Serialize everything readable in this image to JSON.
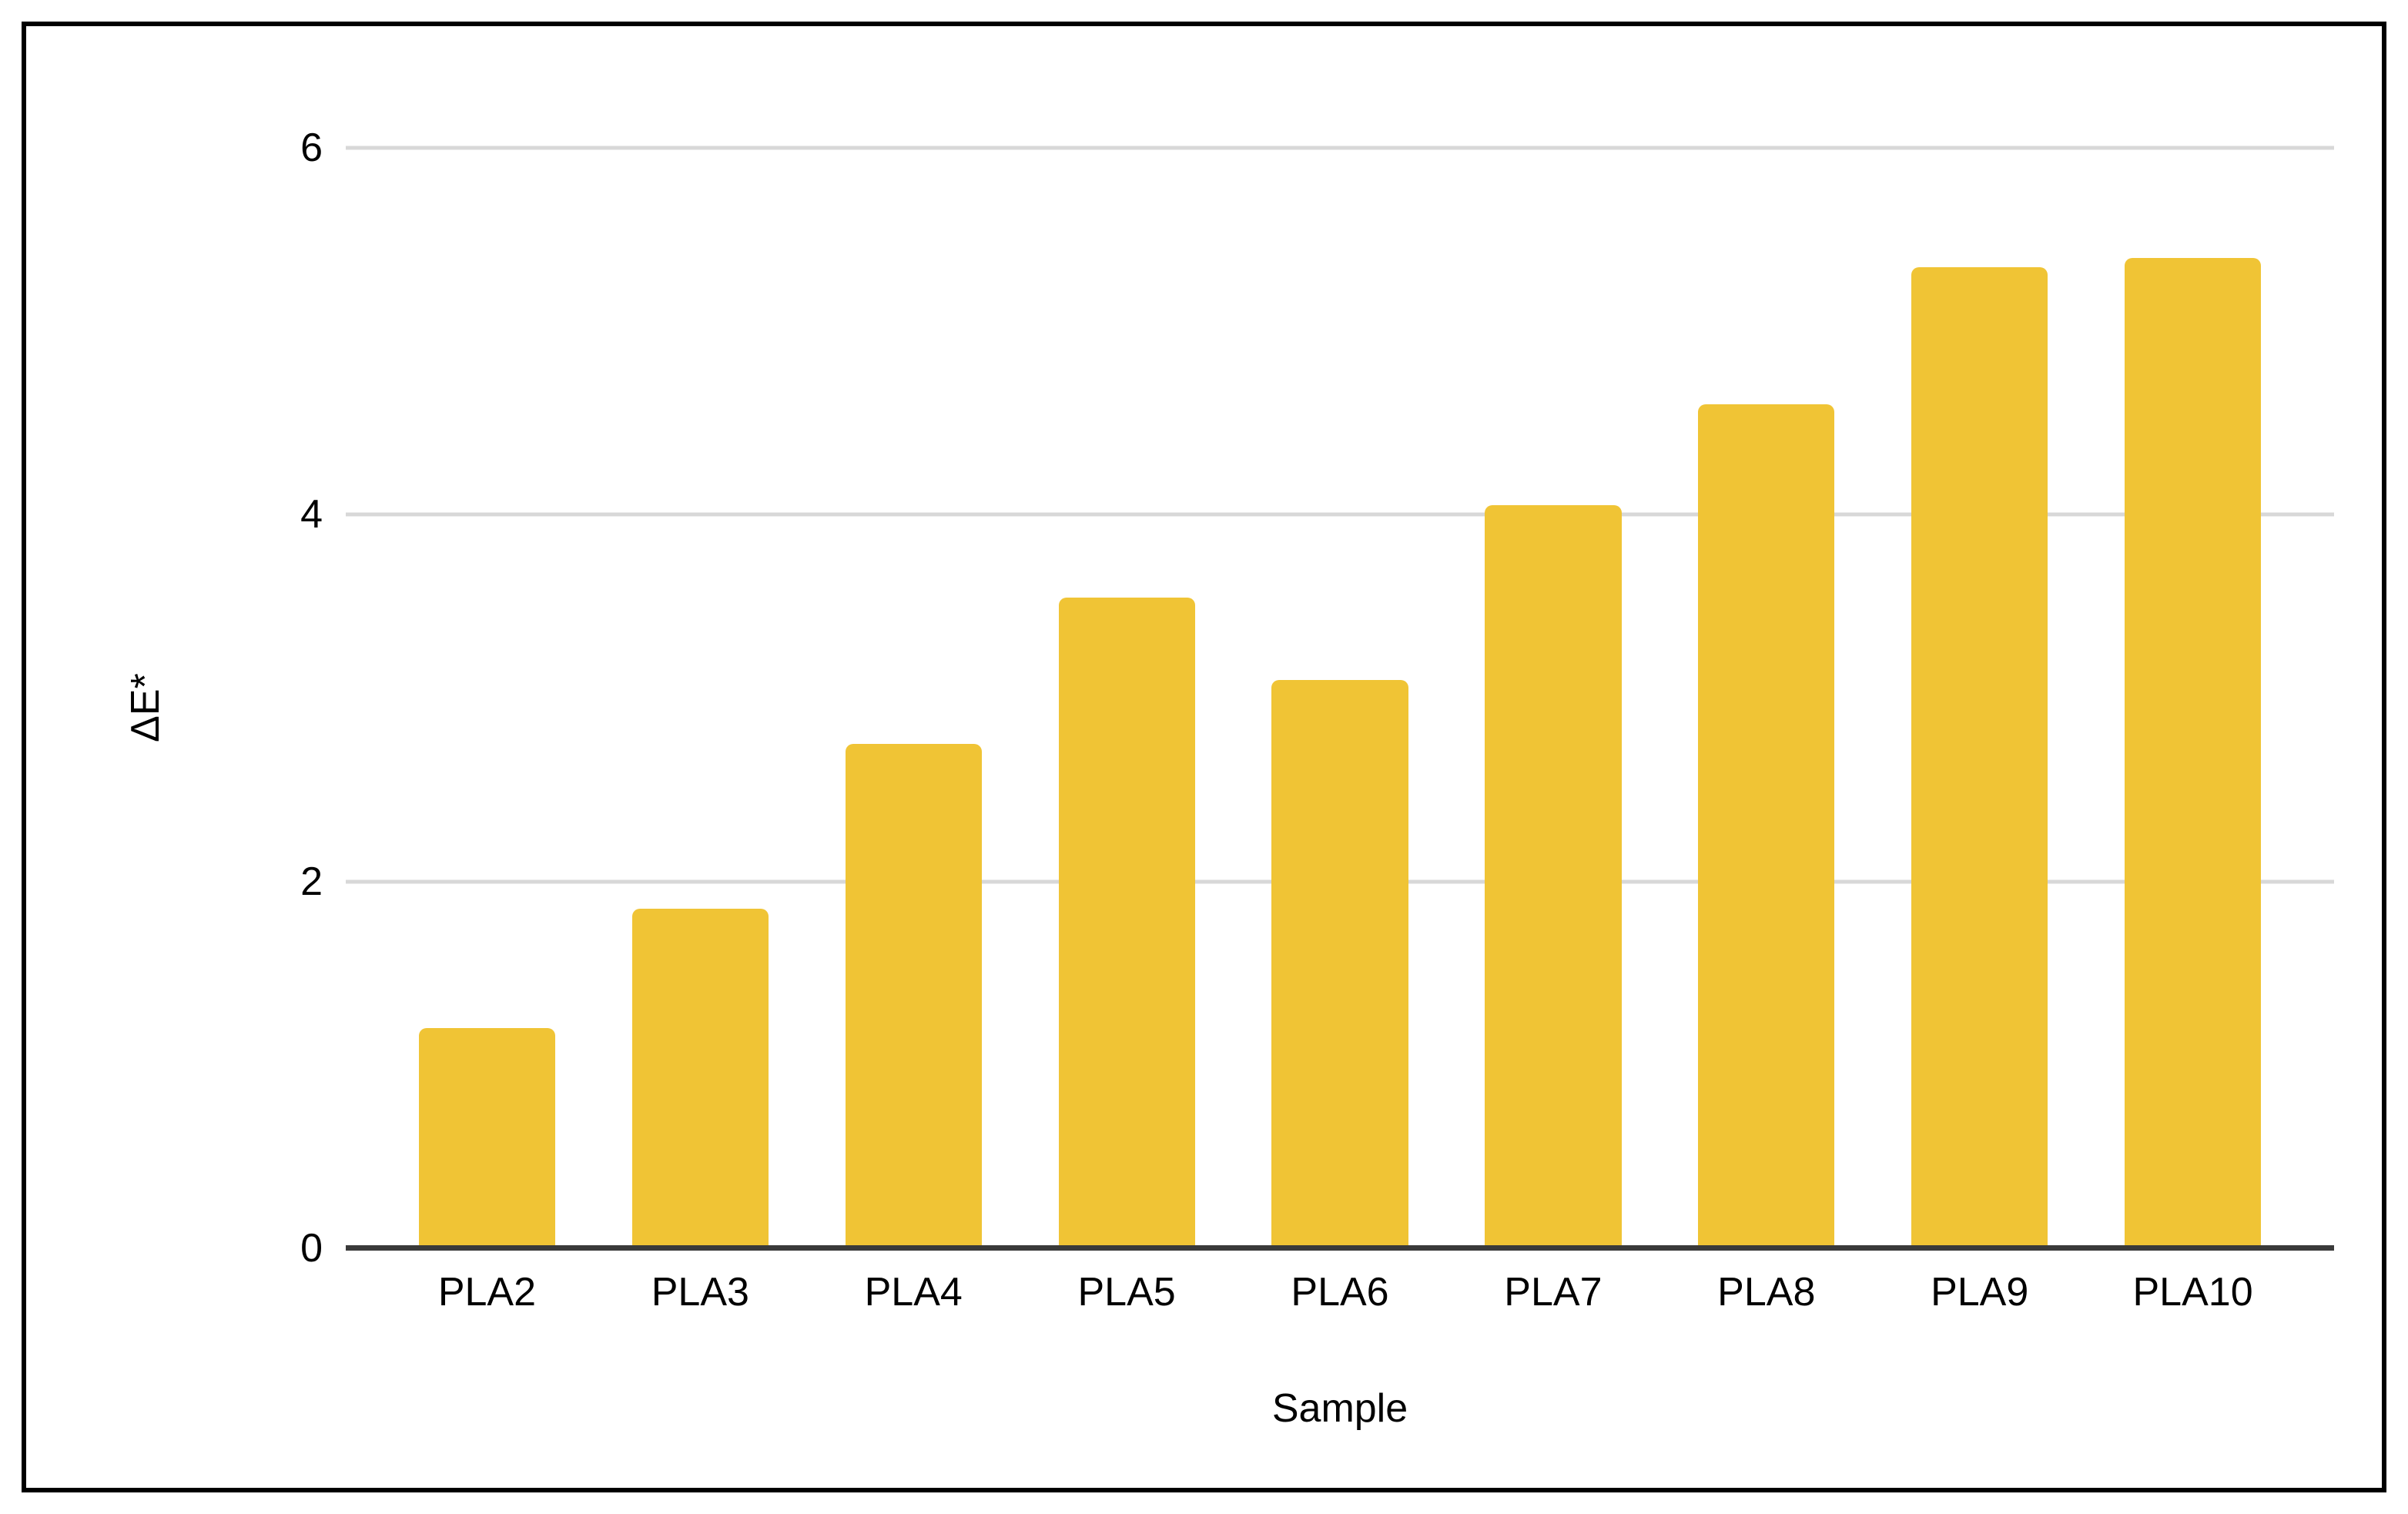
{
  "chart_data": {
    "type": "bar",
    "categories": [
      "PLA2",
      "PLA3",
      "PLA4",
      "PLA5",
      "PLA6",
      "PLA7",
      "PLA8",
      "PLA9",
      "PLA10"
    ],
    "values": [
      1.2,
      1.85,
      2.75,
      3.55,
      3.1,
      4.05,
      4.6,
      5.35,
      5.4
    ],
    "title": "",
    "xlabel": "Sample",
    "ylabel": "ΔE*",
    "ylim": [
      0,
      6
    ],
    "yticks": [
      0,
      2,
      4,
      6
    ],
    "ytick_labels": [
      "0",
      "2",
      "4",
      "6"
    ],
    "grid": true,
    "legend": "none",
    "bar_color": "#F0C435",
    "gridline_color": "#D8D8D8",
    "axis_line_color": "#3A3A3A",
    "text_color": "#000000",
    "frame_border_color": "#000000"
  }
}
